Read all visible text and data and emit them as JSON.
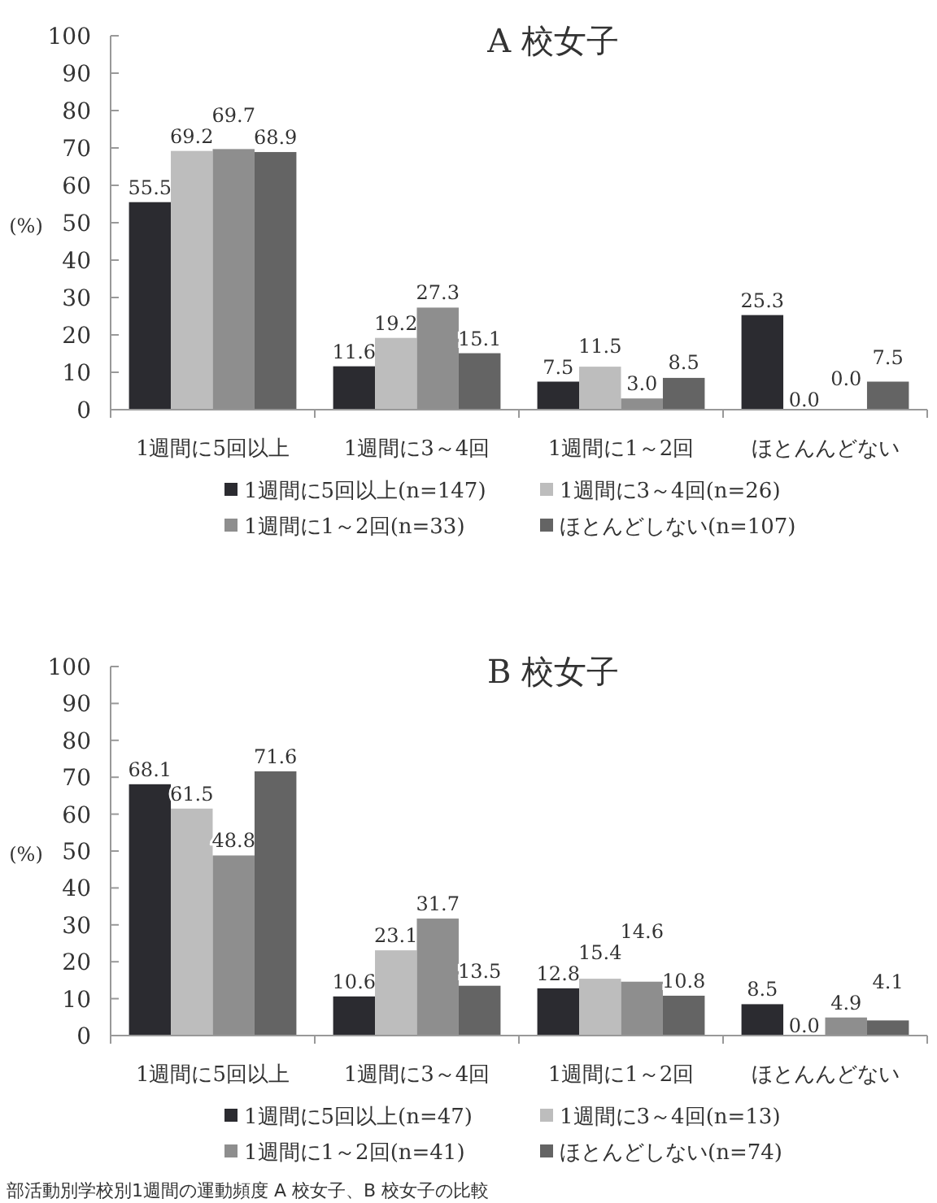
{
  "chart_data": [
    {
      "type": "bar",
      "title": "A 校女子",
      "ylabel": "(%)",
      "categories": [
        "1週間に5回以上",
        "1週間に3～4回",
        "1週間に1～2回",
        "ほとんんどない"
      ],
      "ylim": [
        0,
        100
      ],
      "yticks": [
        0,
        10,
        20,
        30,
        40,
        50,
        60,
        70,
        80,
        90,
        100
      ],
      "grid": false,
      "legend": "bottom",
      "series": [
        {
          "name": "1週間に5回以上(n=147)",
          "color": "#2b2b30",
          "values": [
            55.5,
            11.6,
            7.5,
            25.3
          ],
          "value_labels": [
            "55.5",
            "11.6",
            "7.5",
            "25.3"
          ]
        },
        {
          "name": "1週間に3～4回(n=26)",
          "color": "#bdbdbd",
          "values": [
            69.2,
            19.2,
            11.5,
            0
          ],
          "value_labels": [
            "69.2",
            "19.2",
            "11.5",
            "0.0"
          ]
        },
        {
          "name": "1週間に1～2回(n=33)",
          "color": "#8e8e8e",
          "values": [
            69.7,
            27.3,
            3.0,
            0
          ],
          "value_labels": [
            "69.7",
            "27.3",
            "3.0",
            "0.0"
          ]
        },
        {
          "name": "ほとんどしない(n=107)",
          "color": "#646464",
          "values": [
            68.9,
            15.1,
            8.5,
            7.5
          ],
          "value_labels": [
            "68.9",
            "15.1",
            "8.5",
            "7.5"
          ]
        }
      ]
    },
    {
      "type": "bar",
      "title": "B 校女子",
      "ylabel": "(%)",
      "categories": [
        "1週間に5回以上",
        "1週間に3～4回",
        "1週間に1～2回",
        "ほとんんどない"
      ],
      "ylim": [
        0,
        100
      ],
      "yticks": [
        0,
        10,
        20,
        30,
        40,
        50,
        60,
        70,
        80,
        90,
        100
      ],
      "grid": false,
      "legend": "bottom",
      "annotations": [
        "部活動別学校別1週間の運動頻度 A 校女子、B 校女子の比較"
      ],
      "series": [
        {
          "name": "1週間に5回以上(n=47)",
          "color": "#2b2b30",
          "values": [
            68.1,
            10.6,
            12.8,
            8.5
          ],
          "value_labels": [
            "68.1",
            "10.6",
            "12.8",
            "8.5"
          ]
        },
        {
          "name": "1週間に3～4回(n=13)",
          "color": "#bdbdbd",
          "values": [
            61.5,
            23.1,
            15.4,
            0
          ],
          "value_labels": [
            "61.5",
            "23.1",
            "15.4",
            "0.0"
          ]
        },
        {
          "name": "1週間に1～2回(n=41)",
          "color": "#8e8e8e",
          "values": [
            48.8,
            31.7,
            14.6,
            4.9
          ],
          "value_labels": [
            "48.8",
            "31.7",
            "14.6",
            "4.9"
          ]
        },
        {
          "name": "ほとんどしない(n=74)",
          "color": "#646464",
          "values": [
            71.6,
            13.5,
            10.8,
            4.1
          ],
          "value_labels": [
            "71.6",
            "13.5",
            "10.8",
            "4.1"
          ]
        }
      ]
    }
  ]
}
